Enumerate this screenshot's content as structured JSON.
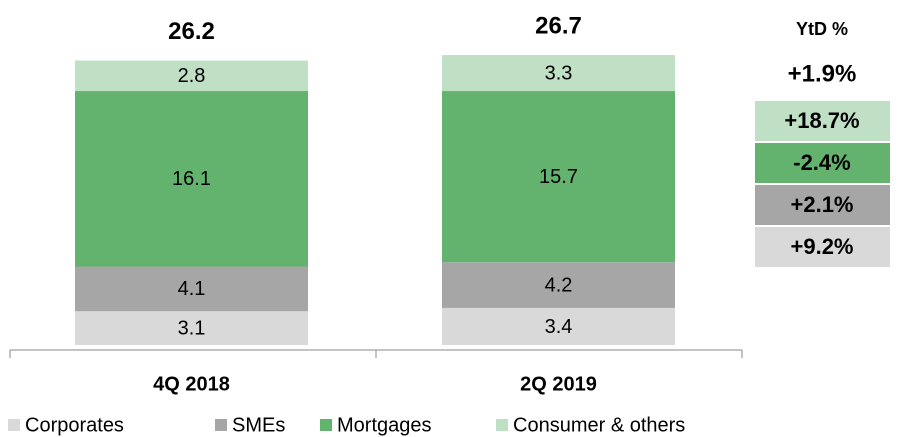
{
  "chart_data": {
    "type": "stacked_bar",
    "categories": [
      "4Q 2018",
      "2Q 2019"
    ],
    "totals": [
      26.2,
      26.7
    ],
    "series": [
      {
        "name": "Corporates",
        "color": "#d9d9d9",
        "values": [
          3.1,
          3.4
        ],
        "ytd": "+9.2%"
      },
      {
        "name": "SMEs",
        "color": "#a6a6a6",
        "values": [
          4.1,
          4.2
        ],
        "ytd": "+2.1%"
      },
      {
        "name": "Mortgages",
        "color": "#63b36f",
        "values": [
          16.1,
          15.7
        ],
        "ytd": "-2.4%"
      },
      {
        "name": "Consumer & others",
        "color": "#bfe0c5",
        "values": [
          2.8,
          3.3
        ],
        "ytd": "+18.7%"
      }
    ],
    "ytd_title": "YtD %",
    "ytd_total": "+1.9%"
  }
}
